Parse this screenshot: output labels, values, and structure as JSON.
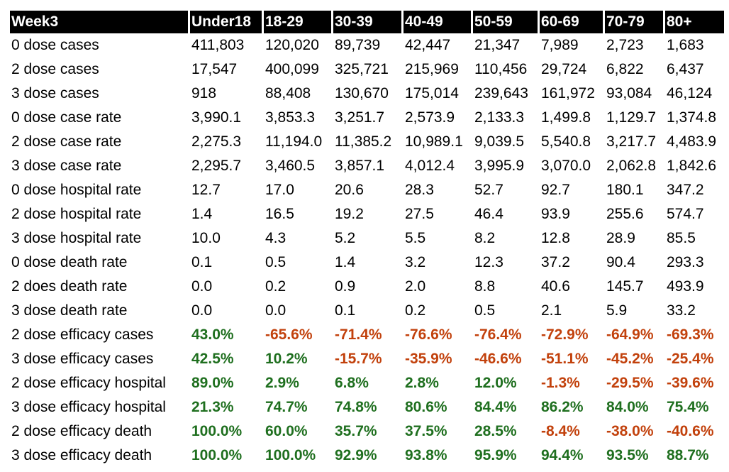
{
  "colors": {
    "header_bg": "#000000",
    "header_text": "#ffffff",
    "positive": "#1f6f1f",
    "negative": "#c2410c"
  },
  "table": {
    "headers": [
      "Week3",
      "Under18",
      "18-29",
      "30-39",
      "40-49",
      "50-59",
      "60-69",
      "70-79",
      "80+"
    ],
    "rows": [
      {
        "label": "0 dose cases",
        "type": "plain",
        "values": [
          "411,803",
          "120,020",
          "89,739",
          "42,447",
          "21,347",
          "7,989",
          "2,723",
          "1,683"
        ]
      },
      {
        "label": "2 dose cases",
        "type": "plain",
        "values": [
          "17,547",
          "400,099",
          "325,721",
          "215,969",
          "110,456",
          "29,724",
          "6,822",
          "6,437"
        ]
      },
      {
        "label": "3 dose  cases",
        "type": "plain",
        "values": [
          "918",
          "88,408",
          "130,670",
          "175,014",
          "239,643",
          "161,972",
          "93,084",
          "46,124"
        ]
      },
      {
        "label": "0 dose case rate",
        "type": "plain",
        "values": [
          "3,990.1",
          "3,853.3",
          "3,251.7",
          "2,573.9",
          "2,133.3",
          "1,499.8",
          "1,129.7",
          "1,374.8"
        ]
      },
      {
        "label": "2 dose case rate",
        "type": "plain",
        "values": [
          "2,275.3",
          "11,194.0",
          "11,385.2",
          "10,989.1",
          "9,039.5",
          "5,540.8",
          "3,217.7",
          "4,483.9"
        ]
      },
      {
        "label": "3 dose case rate",
        "type": "plain",
        "values": [
          "2,295.7",
          "3,460.5",
          "3,857.1",
          "4,012.4",
          "3,995.9",
          "3,070.0",
          "2,062.8",
          "1,842.6"
        ]
      },
      {
        "label": "0 dose hospital rate",
        "type": "plain",
        "values": [
          "12.7",
          "17.0",
          "20.6",
          "28.3",
          "52.7",
          "92.7",
          "180.1",
          "347.2"
        ]
      },
      {
        "label": "2 dose hospital rate",
        "type": "plain",
        "values": [
          "1.4",
          "16.5",
          "19.2",
          "27.5",
          "46.4",
          "93.9",
          "255.6",
          "574.7"
        ]
      },
      {
        "label": "3 dose hospital rate",
        "type": "plain",
        "values": [
          "10.0",
          "4.3",
          "5.2",
          "5.5",
          "8.2",
          "12.8",
          "28.9",
          "85.5"
        ]
      },
      {
        "label": "0 dose death rate",
        "type": "plain",
        "values": [
          "0.1",
          "0.5",
          "1.4",
          "3.2",
          "12.3",
          "37.2",
          "90.4",
          "293.3"
        ]
      },
      {
        "label": "2 does death rate",
        "type": "plain",
        "values": [
          "0.0",
          "0.2",
          "0.9",
          "2.0",
          "8.8",
          "40.6",
          "145.7",
          "493.9"
        ]
      },
      {
        "label": "3 dose death rate",
        "type": "plain",
        "values": [
          "0.0",
          "0.0",
          "0.1",
          "0.2",
          "0.5",
          "2.1",
          "5.9",
          "33.2"
        ]
      },
      {
        "label": "2 dose efficacy cases",
        "type": "efficacy",
        "values": [
          "43.0%",
          "-65.6%",
          "-71.4%",
          "-76.6%",
          "-76.4%",
          "-72.9%",
          "-64.9%",
          "-69.3%"
        ]
      },
      {
        "label": "3 dose efficacy cases",
        "type": "efficacy",
        "values": [
          "42.5%",
          "10.2%",
          "-15.7%",
          "-35.9%",
          "-46.6%",
          "-51.1%",
          "-45.2%",
          "-25.4%"
        ]
      },
      {
        "label": "2 dose efficacy hospital",
        "type": "efficacy",
        "values": [
          "89.0%",
          "2.9%",
          "6.8%",
          "2.8%",
          "12.0%",
          "-1.3%",
          "-29.5%",
          "-39.6%"
        ]
      },
      {
        "label": "3 dose efficacy hospital",
        "type": "efficacy",
        "values": [
          "21.3%",
          "74.7%",
          "74.8%",
          "80.6%",
          "84.4%",
          "86.2%",
          "84.0%",
          "75.4%"
        ]
      },
      {
        "label": "2 dose efficacy death",
        "type": "efficacy",
        "values": [
          "100.0%",
          "60.0%",
          "35.7%",
          "37.5%",
          "28.5%",
          "-8.4%",
          "-38.0%",
          "-40.6%"
        ]
      },
      {
        "label": "3 dose efficacy death",
        "type": "efficacy",
        "values": [
          "100.0%",
          "100.0%",
          "92.9%",
          "93.8%",
          "95.9%",
          "94.4%",
          "93.5%",
          "88.7%"
        ]
      }
    ]
  }
}
